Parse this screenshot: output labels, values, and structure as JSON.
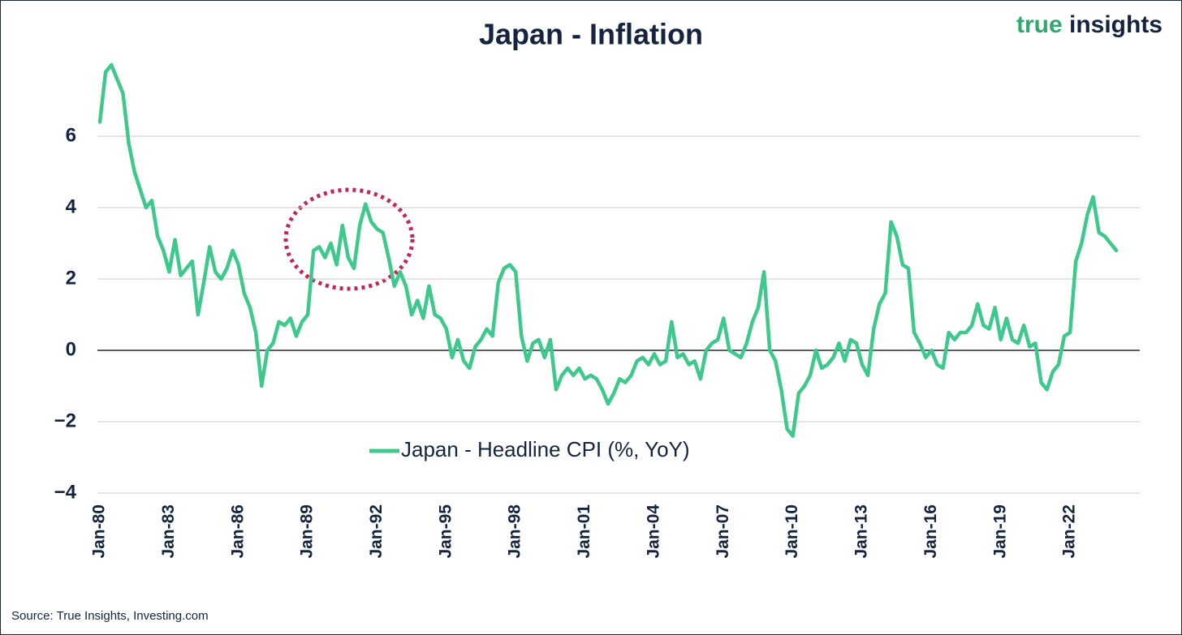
{
  "chart_data": {
    "type": "line",
    "brand": [
      "true",
      "insights"
    ],
    "title": "Japan - Inflation",
    "source": "Source: True Insights, Investing.com",
    "categories": [
      "Jan-80",
      null,
      null,
      null,
      null,
      null,
      null,
      null,
      null,
      null,
      null,
      null,
      "Jan-83",
      null,
      null,
      null,
      null,
      null,
      null,
      null,
      null,
      null,
      null,
      null,
      "Jan-86",
      null,
      null,
      null,
      null,
      null,
      null,
      null,
      null,
      null,
      null,
      null,
      "Jan-89",
      null,
      null,
      null,
      null,
      null,
      null,
      null,
      null,
      null,
      null,
      null,
      "Jan-92",
      null,
      null,
      null,
      null,
      null,
      null,
      null,
      null,
      null,
      null,
      null,
      "Jan-95",
      null,
      null,
      null,
      null,
      null,
      null,
      null,
      null,
      null,
      null,
      null,
      "Jan-98",
      null,
      null,
      null,
      null,
      null,
      null,
      null,
      null,
      null,
      null,
      null,
      "Jan-01",
      null,
      null,
      null,
      null,
      null,
      null,
      null,
      null,
      null,
      null,
      null,
      "Jan-04",
      null,
      null,
      null,
      null,
      null,
      null,
      null,
      null,
      null,
      null,
      null,
      "Jan-07",
      null,
      null,
      null,
      null,
      null,
      null,
      null,
      null,
      null,
      null,
      null,
      "Jan-10",
      null,
      null,
      null,
      null,
      null,
      null,
      null,
      null,
      null,
      null,
      null,
      "Jan-13",
      null,
      null,
      null,
      null,
      null,
      null,
      null,
      null,
      null,
      null,
      null,
      "Jan-16",
      null,
      null,
      null,
      null,
      null,
      null,
      null,
      null,
      null,
      null,
      null,
      "Jan-19",
      null,
      null,
      null,
      null,
      null,
      null,
      null,
      null,
      null,
      null,
      null,
      "Jan-22",
      null,
      null,
      null,
      null,
      null,
      null,
      null,
      null
    ],
    "series": [
      {
        "name": "Japan - Headline CPI (%, YoY)",
        "color": "#3ec98c",
        "values": [
          6.4,
          7.8,
          8.0,
          7.6,
          7.2,
          5.8,
          5.0,
          4.5,
          4.0,
          4.2,
          3.2,
          2.8,
          2.2,
          3.1,
          2.1,
          2.3,
          2.5,
          1.0,
          1.9,
          2.9,
          2.2,
          2.0,
          2.3,
          2.8,
          2.4,
          1.6,
          1.2,
          0.5,
          -1.0,
          0.0,
          0.2,
          0.8,
          0.7,
          0.9,
          0.4,
          0.8,
          1.0,
          2.8,
          2.9,
          2.6,
          3.0,
          2.4,
          3.5,
          2.6,
          2.3,
          3.5,
          4.1,
          3.6,
          3.4,
          3.3,
          2.6,
          1.8,
          2.2,
          1.8,
          1.0,
          1.4,
          0.9,
          1.8,
          1.0,
          0.9,
          0.6,
          -0.2,
          0.3,
          -0.3,
          -0.5,
          0.1,
          0.3,
          0.6,
          0.4,
          1.9,
          2.3,
          2.4,
          2.2,
          0.4,
          -0.3,
          0.2,
          0.3,
          -0.2,
          0.3,
          -1.1,
          -0.7,
          -0.5,
          -0.7,
          -0.5,
          -0.8,
          -0.7,
          -0.8,
          -1.1,
          -1.5,
          -1.2,
          -0.8,
          -0.9,
          -0.7,
          -0.3,
          -0.2,
          -0.4,
          -0.1,
          -0.4,
          -0.3,
          0.8,
          -0.2,
          -0.1,
          -0.4,
          -0.3,
          -0.8,
          0.0,
          0.2,
          0.3,
          0.9,
          0.0,
          -0.1,
          -0.2,
          0.2,
          0.8,
          1.2,
          2.2,
          0.0,
          -0.3,
          -1.1,
          -2.2,
          -2.4,
          -1.2,
          -1.0,
          -0.7,
          0.0,
          -0.5,
          -0.4,
          -0.2,
          0.2,
          -0.3,
          0.3,
          0.2,
          -0.4,
          -0.7,
          0.6,
          1.3,
          1.6,
          3.6,
          3.2,
          2.4,
          2.3,
          0.5,
          0.2,
          -0.2,
          0.0,
          -0.4,
          -0.5,
          0.5,
          0.3,
          0.5,
          0.5,
          0.7,
          1.3,
          0.7,
          0.6,
          1.2,
          0.3,
          0.9,
          0.3,
          0.2,
          0.7,
          0.1,
          0.2,
          -0.9,
          -1.1,
          -0.6,
          -0.4,
          0.4,
          0.5,
          2.5,
          3.0,
          3.8,
          4.3,
          3.3,
          3.2,
          3.0,
          2.8
        ]
      }
    ],
    "ylim": [
      -4,
      8
    ],
    "yticks": [
      {
        "value": -4,
        "label": "−4"
      },
      {
        "value": -2,
        "label": "−2"
      },
      0,
      2,
      4,
      6
    ],
    "grid": true
  }
}
